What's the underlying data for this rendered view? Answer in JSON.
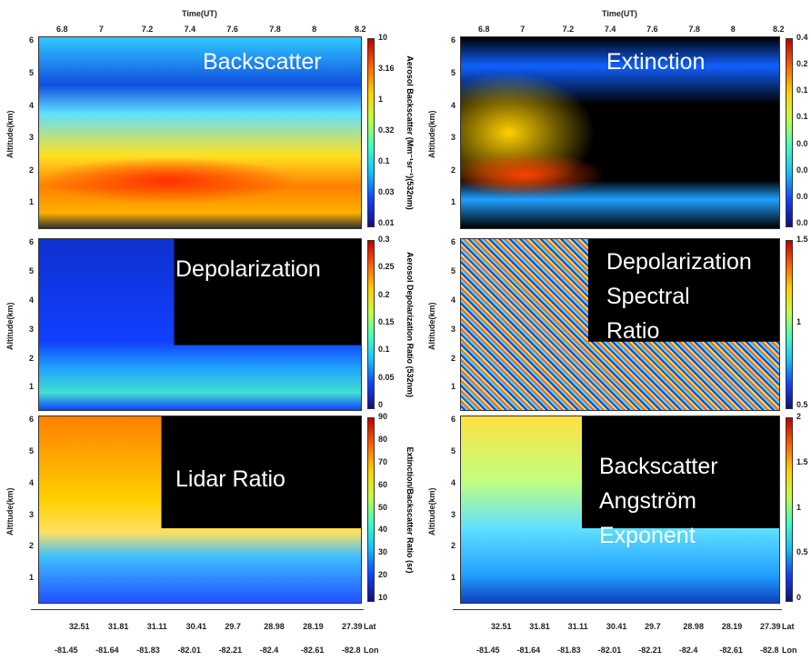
{
  "time_axis": {
    "label": "Time(UT)",
    "ticks": [
      "6.8",
      "7",
      "7.2",
      "7.4",
      "7.6",
      "7.8",
      "8",
      "8.2"
    ]
  },
  "altitude_axis": {
    "label": "Altitude(km)",
    "ticks": [
      "1",
      "2",
      "3",
      "4",
      "5",
      "6"
    ]
  },
  "panels": [
    {
      "title": [
        "Backscatter"
      ],
      "colorbar_label": "Aerosol Backscatter (Mm⁻¹sr⁻¹)(532nm)",
      "colorbar_ticks": [
        "10",
        "3.16",
        "1",
        "0.32",
        "0.1",
        "0.03",
        "0.01"
      ]
    },
    {
      "title": [
        "Extinction"
      ],
      "colorbar_label": "",
      "colorbar_ticks": [
        "0.4",
        "0.2",
        "0.1",
        "0.1",
        "0.0",
        "0.0",
        "0.0",
        "0.0"
      ]
    },
    {
      "title": [
        "Depolarization"
      ],
      "colorbar_label": "Aerosol Depolarization Ratio (532nm)",
      "colorbar_ticks": [
        "0.3",
        "0.25",
        "0.2",
        "0.15",
        "0.1",
        "0.05",
        "0"
      ]
    },
    {
      "title": [
        "Depolarization",
        "Spectral",
        "Ratio"
      ],
      "colorbar_label": "",
      "colorbar_ticks": [
        "1.5",
        "1",
        "0.5"
      ]
    },
    {
      "title": [
        "Lidar Ratio"
      ],
      "colorbar_label": "Extinction/Backscatter Ratio (sr)",
      "colorbar_ticks": [
        "90",
        "80",
        "70",
        "60",
        "50",
        "40",
        "30",
        "20",
        "10"
      ]
    },
    {
      "title": [
        "Backscatter",
        "Angström",
        "Exponent"
      ],
      "colorbar_label": "",
      "colorbar_ticks": [
        "2",
        "1.5",
        "1",
        "0.5",
        "0"
      ]
    }
  ],
  "lat_axis": {
    "label": "Lat",
    "ticks": [
      "32.51",
      "31.81",
      "31.11",
      "30.41",
      "29.7",
      "28.98",
      "28.19",
      "27.39"
    ]
  },
  "lon_axis": {
    "label": "Lon",
    "ticks": [
      "-81.45",
      "-81.64",
      "-81.83",
      "-82.01",
      "-82.21",
      "-82.4",
      "-82.61",
      "-82.8"
    ]
  }
}
